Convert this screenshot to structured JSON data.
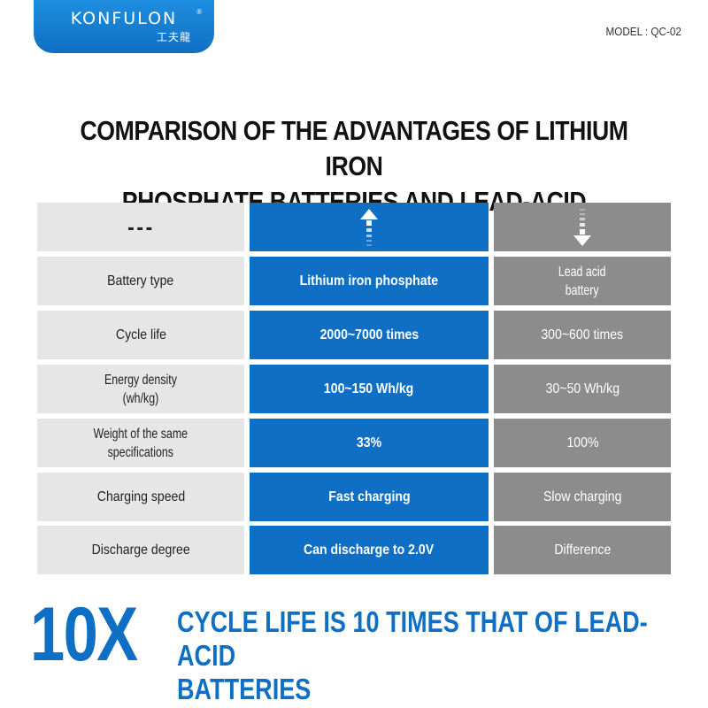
{
  "logo": {
    "brand": "KONFULON",
    "registered": "®",
    "chinese": "工夫龍"
  },
  "model": "MODEL : QC-02",
  "title": {
    "line1": "COMPARISON OF THE ADVANTAGES OF LITHIUM IRON",
    "line2": "PHOSPHATE BATTERIES AND LEAD-ACID BATTERIES"
  },
  "table": {
    "header": {
      "col1": "---",
      "col2_icon": "arrow-up-icon",
      "col3_icon": "arrow-down-icon"
    },
    "rows": [
      {
        "label": "Battery type",
        "lifepo4": "Lithium iron phosphate",
        "lead_line1": "Lead acid",
        "lead_line2": "battery"
      },
      {
        "label": "Cycle life",
        "lifepo4": "2000~7000 times",
        "lead": "300~600 times"
      },
      {
        "label_line1": "Energy density",
        "label_line2": "(wh/kg)",
        "lifepo4": "100~150 Wh/kg",
        "lead": "30~50 Wh/kg"
      },
      {
        "label_line1": "Weight of the same",
        "label_line2": "specifications",
        "lifepo4": "33%",
        "lead": "100%"
      },
      {
        "label": "Charging speed",
        "lifepo4": "Fast charging",
        "lead": "Slow charging"
      },
      {
        "label": "Discharge degree",
        "lifepo4": "Can discharge to 2.0V",
        "lead": "Difference"
      }
    ]
  },
  "highlight": {
    "big": "10X",
    "text_line1": "CYCLE LIFE IS 10 TIMES THAT OF LEAD-ACID",
    "text_line2": "BATTERIES"
  },
  "colors": {
    "blue": "#0f6fc4",
    "gray": "#8c8c8c",
    "light_gray": "#e6e6e6"
  }
}
